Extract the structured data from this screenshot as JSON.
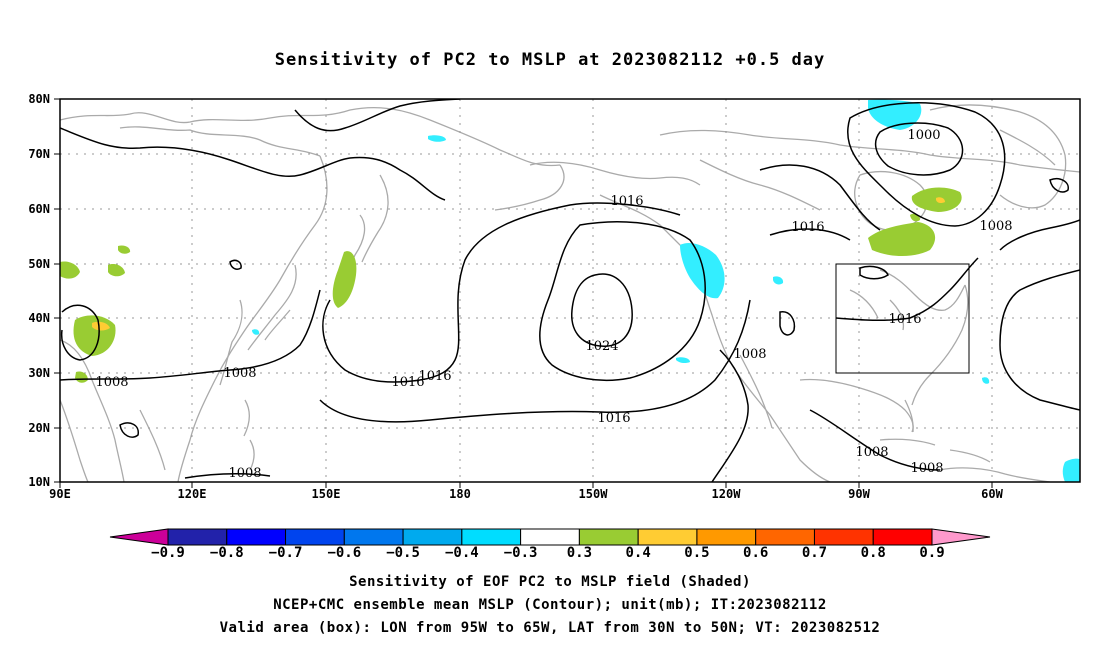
{
  "title": "Sensitivity of PC2 to MSLP at 2023082112 +0.5 day",
  "map": {
    "lon_labels": [
      "90E",
      "120E",
      "150E",
      "180",
      "150W",
      "120W",
      "90W",
      "60W"
    ],
    "lat_labels": [
      "80N",
      "70N",
      "60N",
      "50N",
      "40N",
      "30N",
      "20N",
      "10N"
    ],
    "contour_labels": [
      "1000",
      "1008",
      "1016",
      "1024",
      "1016",
      "1016",
      "1016",
      "1016",
      "1016",
      "1008",
      "1008",
      "1008",
      "1008",
      "1008",
      "1008"
    ],
    "valid_box": {
      "lon_from": "95W",
      "lon_to": "65W",
      "lat_from": "30N",
      "lat_to": "50N"
    },
    "colors": {
      "land": "#aaaaaa",
      "contour": "#000000",
      "grid": "#999999",
      "positive_0_3": "#99cc33",
      "positive_0_4": "#ffcc33",
      "negative_0_3": "#33eeff"
    }
  },
  "colorbar": {
    "labels": [
      "−0.9",
      "−0.8",
      "−0.7",
      "−0.6",
      "−0.5",
      "−0.4",
      "−0.3",
      "0.3",
      "0.4",
      "0.5",
      "0.6",
      "0.7",
      "0.8",
      "0.9"
    ],
    "colors": [
      "#2222aa",
      "#0000ff",
      "#0044ee",
      "#0077ee",
      "#00aaee",
      "#00ddff",
      "#ffffff",
      "#99cc33",
      "#ffcc33",
      "#ff9900",
      "#ff6600",
      "#ff3300",
      "#ff0000"
    ],
    "left_arrow_color": "#cc0099",
    "right_arrow_color": "#ff99cc"
  },
  "footer": {
    "line1": "Sensitivity of EOF PC2 to MSLP field (Shaded)",
    "line2": "NCEP+CMC ensemble mean MSLP (Contour); unit(mb); IT:2023082112",
    "line3": "Valid area (box): LON from 95W to 65W, LAT from 30N to 50N; VT: 2023082512"
  }
}
